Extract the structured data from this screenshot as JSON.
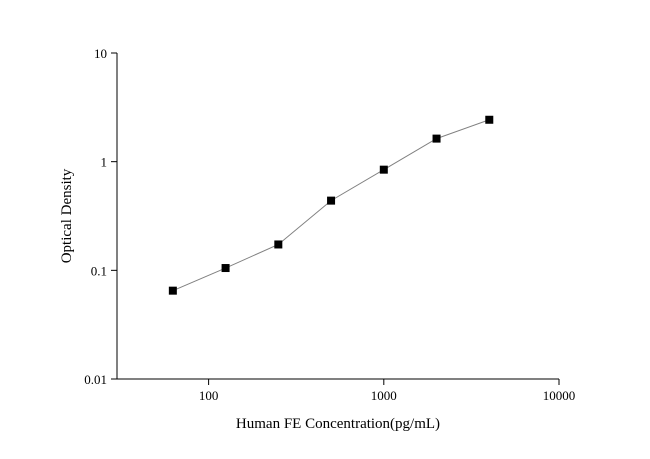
{
  "chart_data": {
    "type": "line",
    "x_label": "Human FE Concentration(pg/mL)",
    "y_label": "Optical Density",
    "x": [
      62.5,
      125,
      250,
      500,
      1000,
      2000,
      4000
    ],
    "series": [
      {
        "values": [
          0.065,
          0.105,
          0.173,
          0.438,
          0.844,
          1.63,
          2.43
        ],
        "color": "#000000",
        "line_color": "#808080",
        "marker": "square"
      }
    ],
    "xscale": "log",
    "yscale": "log",
    "xlim": [
      30,
      10000
    ],
    "xticks": [
      100,
      1000,
      10000
    ],
    "ylim": [
      0.01,
      10
    ],
    "yticks": [
      0.01,
      0.1,
      1,
      10
    ]
  }
}
